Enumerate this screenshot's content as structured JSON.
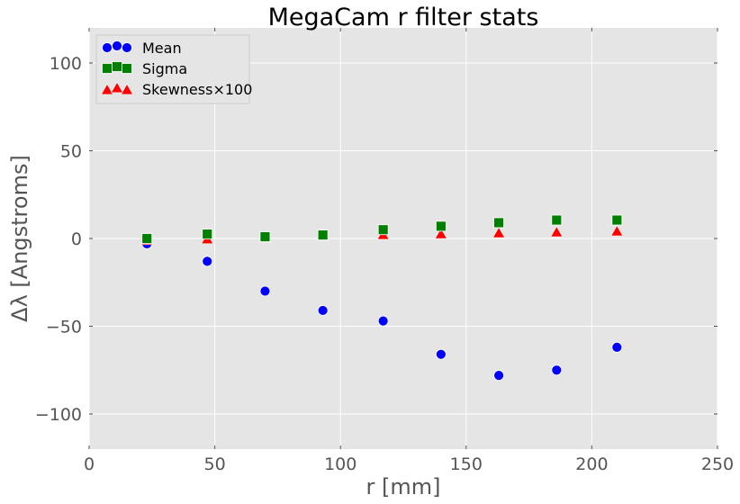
{
  "chart_data": {
    "type": "scatter",
    "title": "MegaCam r filter stats",
    "xlabel": "r [mm]",
    "ylabel": "Δλ [Angstroms]",
    "xlim": [
      0,
      250
    ],
    "ylim": [
      -120,
      120
    ],
    "xticks": [
      0,
      50,
      100,
      150,
      200,
      250
    ],
    "yticks": [
      -100,
      -50,
      0,
      50,
      100
    ],
    "grid": true,
    "legend_position": "top-left",
    "background_color": "#e5e5e5",
    "series": [
      {
        "name": "Mean",
        "marker": "circle",
        "color": "#0000ff",
        "x": [
          23,
          47,
          70,
          93,
          117,
          140,
          163,
          186,
          210
        ],
        "y": [
          -3,
          -13,
          -30,
          -41,
          -47,
          -66,
          -78,
          -75,
          -62
        ]
      },
      {
        "name": "Sigma",
        "marker": "square",
        "color": "#008000",
        "x": [
          23,
          47,
          70,
          93,
          117,
          140,
          163,
          186,
          210
        ],
        "y": [
          0,
          2.5,
          1,
          2,
          5,
          7,
          9,
          10.5,
          10.5
        ]
      },
      {
        "name": "Skewness×100",
        "marker": "triangle",
        "color": "#ff0000",
        "x": [
          23,
          47,
          70,
          93,
          117,
          140,
          163,
          186,
          210
        ],
        "y": [
          -1,
          -0.5,
          0.5,
          1.5,
          2,
          2.5,
          3,
          3.5,
          4
        ]
      }
    ]
  }
}
